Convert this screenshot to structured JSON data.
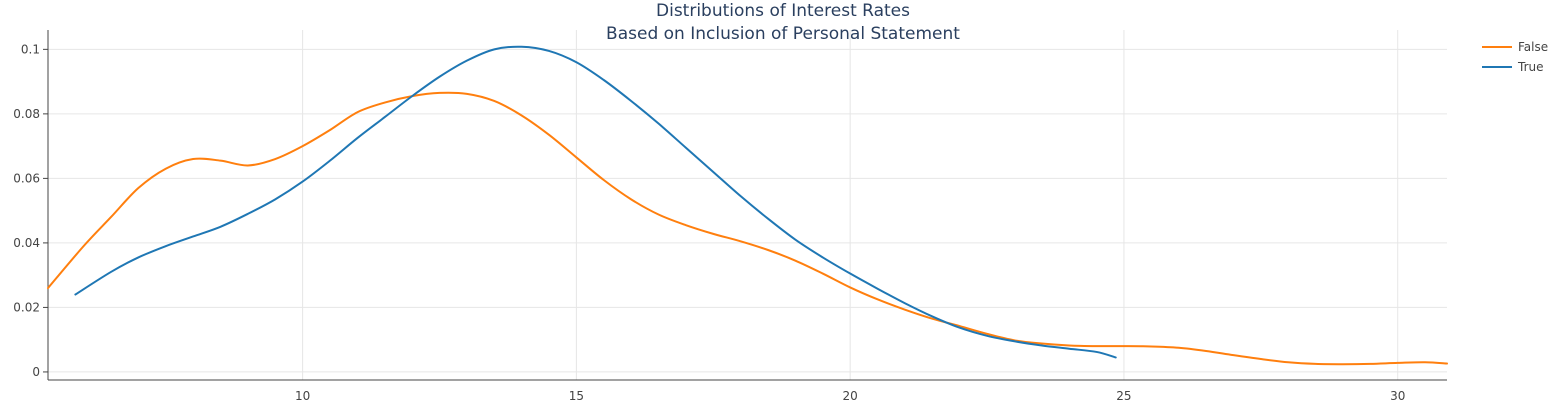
{
  "chart_data": {
    "type": "line",
    "title": "Distributions of Interest Rates",
    "subtitle": "Based on Inclusion of Personal Statement",
    "xlabel": "",
    "ylabel": "",
    "xlim": [
      5.35,
      30.9
    ],
    "ylim": [
      -0.0025,
      0.106
    ],
    "x_ticks": [
      10,
      15,
      20,
      25,
      30
    ],
    "y_ticks": [
      0,
      0.02,
      0.04,
      0.06,
      0.08,
      0.1
    ],
    "x_tick_labels": [
      "10",
      "15",
      "20",
      "25",
      "30"
    ],
    "y_tick_labels": [
      "0",
      "0.02",
      "0.04",
      "0.06",
      "0.08",
      "0.1"
    ],
    "grid": true,
    "legend": "top-right",
    "series": [
      {
        "name": "False",
        "color": "#ff7f0e",
        "x": [
          5.35,
          6.0,
          6.5,
          7.0,
          7.5,
          8.0,
          8.5,
          9.0,
          9.5,
          10.0,
          10.5,
          11.0,
          11.5,
          12.0,
          12.5,
          13.0,
          13.5,
          14.0,
          14.5,
          15.0,
          15.5,
          16.0,
          16.5,
          17.0,
          17.5,
          18.0,
          18.5,
          19.0,
          19.5,
          20.0,
          20.5,
          21.0,
          21.5,
          22.0,
          22.5,
          23.0,
          23.5,
          24.0,
          24.5,
          25.0,
          25.5,
          26.0,
          26.5,
          27.0,
          27.5,
          28.0,
          28.5,
          29.0,
          29.5,
          30.0,
          30.5,
          30.9
        ],
        "values": [
          0.026,
          0.039,
          0.048,
          0.057,
          0.063,
          0.066,
          0.0655,
          0.064,
          0.066,
          0.07,
          0.075,
          0.0805,
          0.0835,
          0.0855,
          0.0865,
          0.0862,
          0.084,
          0.0795,
          0.0735,
          0.0665,
          0.0595,
          0.0535,
          0.0488,
          0.0455,
          0.0428,
          0.0405,
          0.0378,
          0.0345,
          0.0305,
          0.0262,
          0.0225,
          0.0193,
          0.0165,
          0.0142,
          0.0118,
          0.0098,
          0.0088,
          0.0082,
          0.008,
          0.008,
          0.0079,
          0.0075,
          0.0065,
          0.0052,
          0.004,
          0.003,
          0.0025,
          0.0024,
          0.0025,
          0.0028,
          0.003,
          0.0026
        ]
      },
      {
        "name": "True",
        "color": "#1f77b4",
        "x": [
          5.85,
          6.5,
          7.0,
          7.5,
          8.0,
          8.5,
          9.0,
          9.5,
          10.0,
          10.5,
          11.0,
          11.5,
          12.0,
          12.5,
          13.0,
          13.5,
          14.0,
          14.5,
          15.0,
          15.5,
          16.0,
          16.5,
          17.0,
          17.5,
          18.0,
          18.5,
          19.0,
          19.5,
          20.0,
          20.5,
          21.0,
          21.5,
          22.0,
          22.5,
          23.0,
          23.5,
          24.0,
          24.5,
          24.85
        ],
        "values": [
          0.024,
          0.031,
          0.0355,
          0.039,
          0.042,
          0.045,
          0.049,
          0.0535,
          0.059,
          0.0655,
          0.0725,
          0.079,
          0.0855,
          0.0915,
          0.0965,
          0.1,
          0.1008,
          0.0995,
          0.096,
          0.0905,
          0.084,
          0.077,
          0.0695,
          0.062,
          0.0545,
          0.0475,
          0.041,
          0.0355,
          0.0305,
          0.0258,
          0.0213,
          0.0172,
          0.0137,
          0.0112,
          0.0095,
          0.0082,
          0.0072,
          0.0062,
          0.0045
        ]
      }
    ]
  }
}
